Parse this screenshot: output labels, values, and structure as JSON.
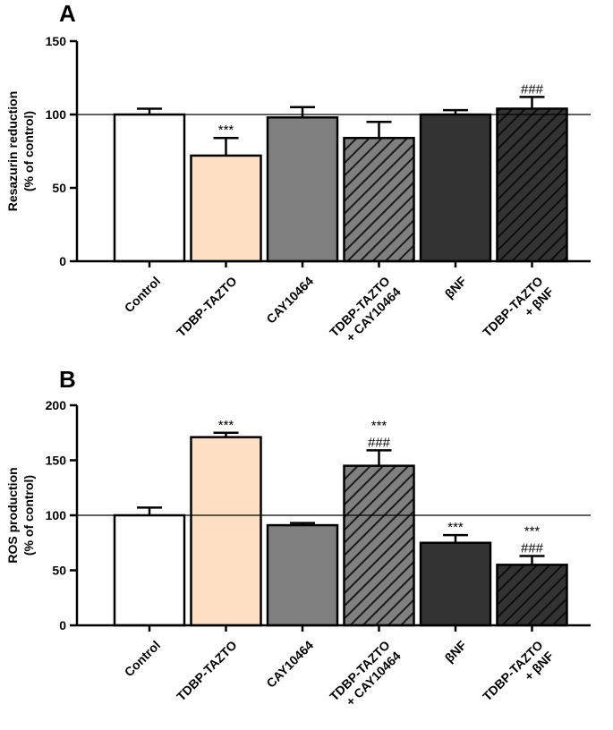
{
  "chart_data": [
    {
      "type": "bar",
      "panel": "A",
      "ylabel_lines": [
        "Resazurin reduction",
        "(% of control)"
      ],
      "ylim": [
        0,
        150
      ],
      "yticks": [
        0,
        50,
        100,
        150
      ],
      "reference_line": 100,
      "categories": [
        {
          "lines": [
            "Control"
          ]
        },
        {
          "lines": [
            "TDBP-TAZTO"
          ]
        },
        {
          "lines": [
            "CAY10464"
          ]
        },
        {
          "lines": [
            "TDBP-TAZTO",
            "+ CAY10464"
          ]
        },
        {
          "lines": [
            "βNF"
          ]
        },
        {
          "lines": [
            "TDBP-TAZTO",
            "+ βNF"
          ]
        }
      ],
      "values": [
        100,
        72,
        98,
        84,
        100,
        104
      ],
      "errors": [
        4,
        12,
        7,
        11,
        3,
        8
      ],
      "annotations": [
        [],
        [
          "***"
        ],
        [],
        [],
        [],
        [
          "###"
        ]
      ]
    },
    {
      "type": "bar",
      "panel": "B",
      "ylabel_lines": [
        "ROS production",
        "(% of control)"
      ],
      "ylim": [
        0,
        200
      ],
      "yticks": [
        0,
        50,
        100,
        150,
        200
      ],
      "reference_line": 100,
      "categories": [
        {
          "lines": [
            "Control"
          ]
        },
        {
          "lines": [
            "TDBP-TAZTO"
          ]
        },
        {
          "lines": [
            "CAY10464"
          ]
        },
        {
          "lines": [
            "TDBP-TAZTO",
            "+ CAY10464"
          ]
        },
        {
          "lines": [
            "βNF"
          ]
        },
        {
          "lines": [
            "TDBP-TAZTO",
            "+ βNF"
          ]
        }
      ],
      "values": [
        100,
        171,
        91,
        145,
        75,
        55
      ],
      "errors": [
        7,
        4,
        2,
        14,
        7,
        8
      ],
      "annotations": [
        [],
        [
          "***"
        ],
        [],
        [
          "***",
          "###"
        ],
        [
          "***"
        ],
        [
          "***",
          "###"
        ]
      ]
    }
  ],
  "bar_styles": [
    {
      "fill": "#ffffff",
      "hatch": false
    },
    {
      "fill": "#fde0c4",
      "hatch": false
    },
    {
      "fill": "#808080",
      "hatch": false
    },
    {
      "fill": "#808080",
      "hatch": true
    },
    {
      "fill": "#333333",
      "hatch": false
    },
    {
      "fill": "#333333",
      "hatch": true
    }
  ]
}
